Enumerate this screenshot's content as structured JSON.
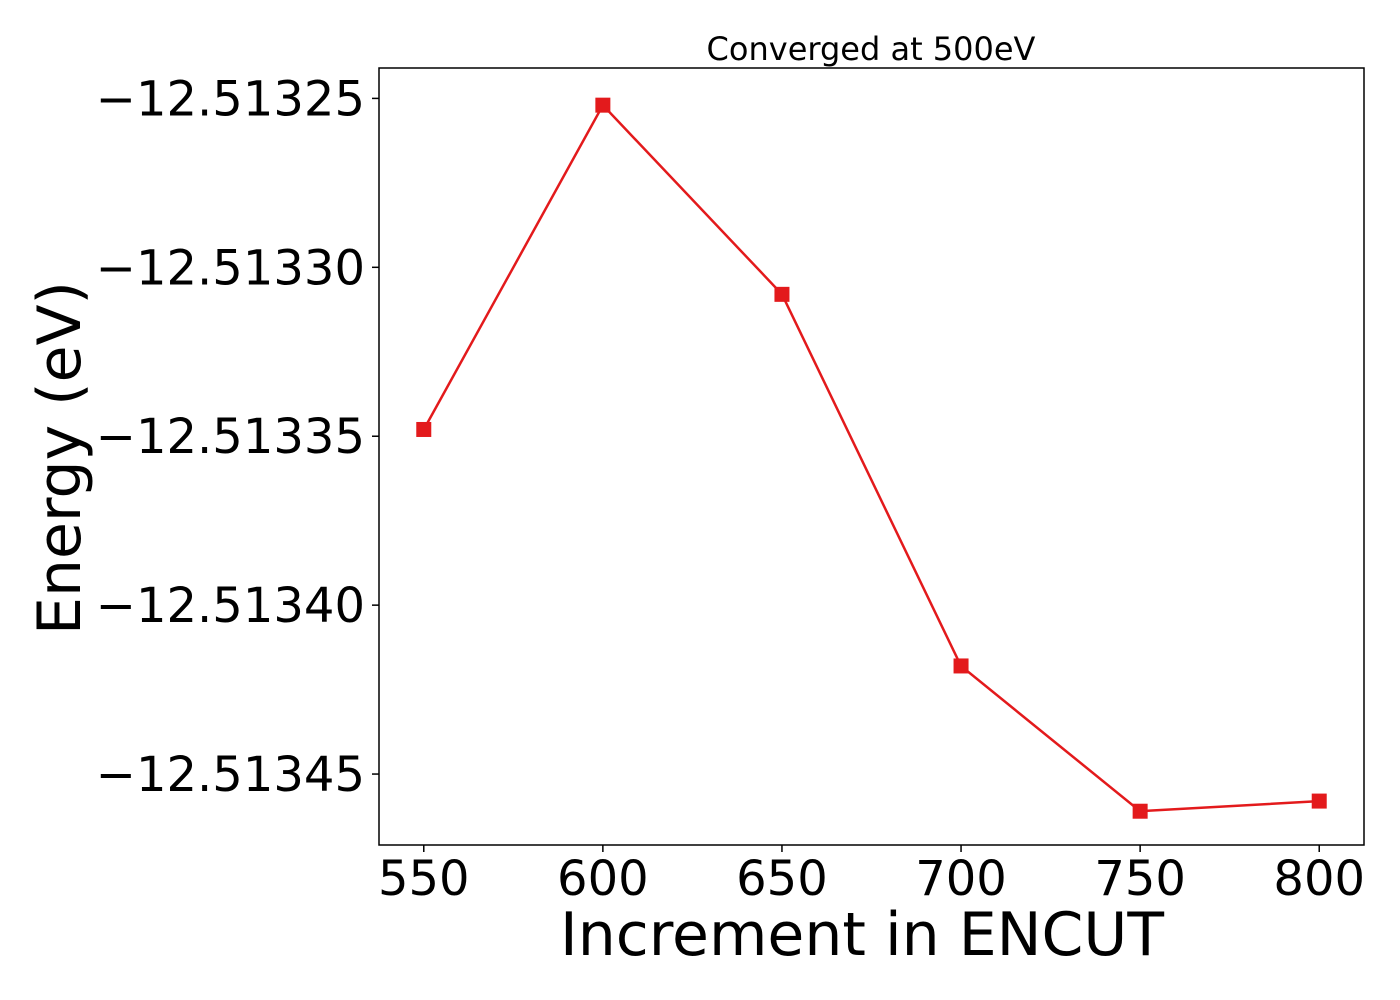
{
  "chart_data": {
    "type": "line",
    "title": "Converged at 500eV",
    "xlabel": "Increment in ENCUT",
    "ylabel": "Energy (eV)",
    "x": [
      550,
      600,
      650,
      700,
      750,
      800
    ],
    "xticks": [
      550,
      600,
      650,
      700,
      750,
      800
    ],
    "xtick_labels": [
      "550",
      "600",
      "650",
      "700",
      "750",
      "800"
    ],
    "yticks": [
      -12.51325,
      -12.5133,
      -12.51335,
      -12.5134,
      -12.51345
    ],
    "ytick_labels": [
      "−12.51325",
      "−12.51330",
      "−12.51335",
      "−12.51340",
      "−12.51345"
    ],
    "xlim": [
      537.5,
      812.5
    ],
    "ylim": [
      -12.513471,
      -12.513241
    ],
    "grid": false,
    "series": [
      {
        "color": "#e31a1c",
        "marker": "square",
        "values": [
          -12.513348,
          -12.513252,
          -12.513308,
          -12.513418,
          -12.513461,
          -12.513458
        ]
      }
    ]
  }
}
